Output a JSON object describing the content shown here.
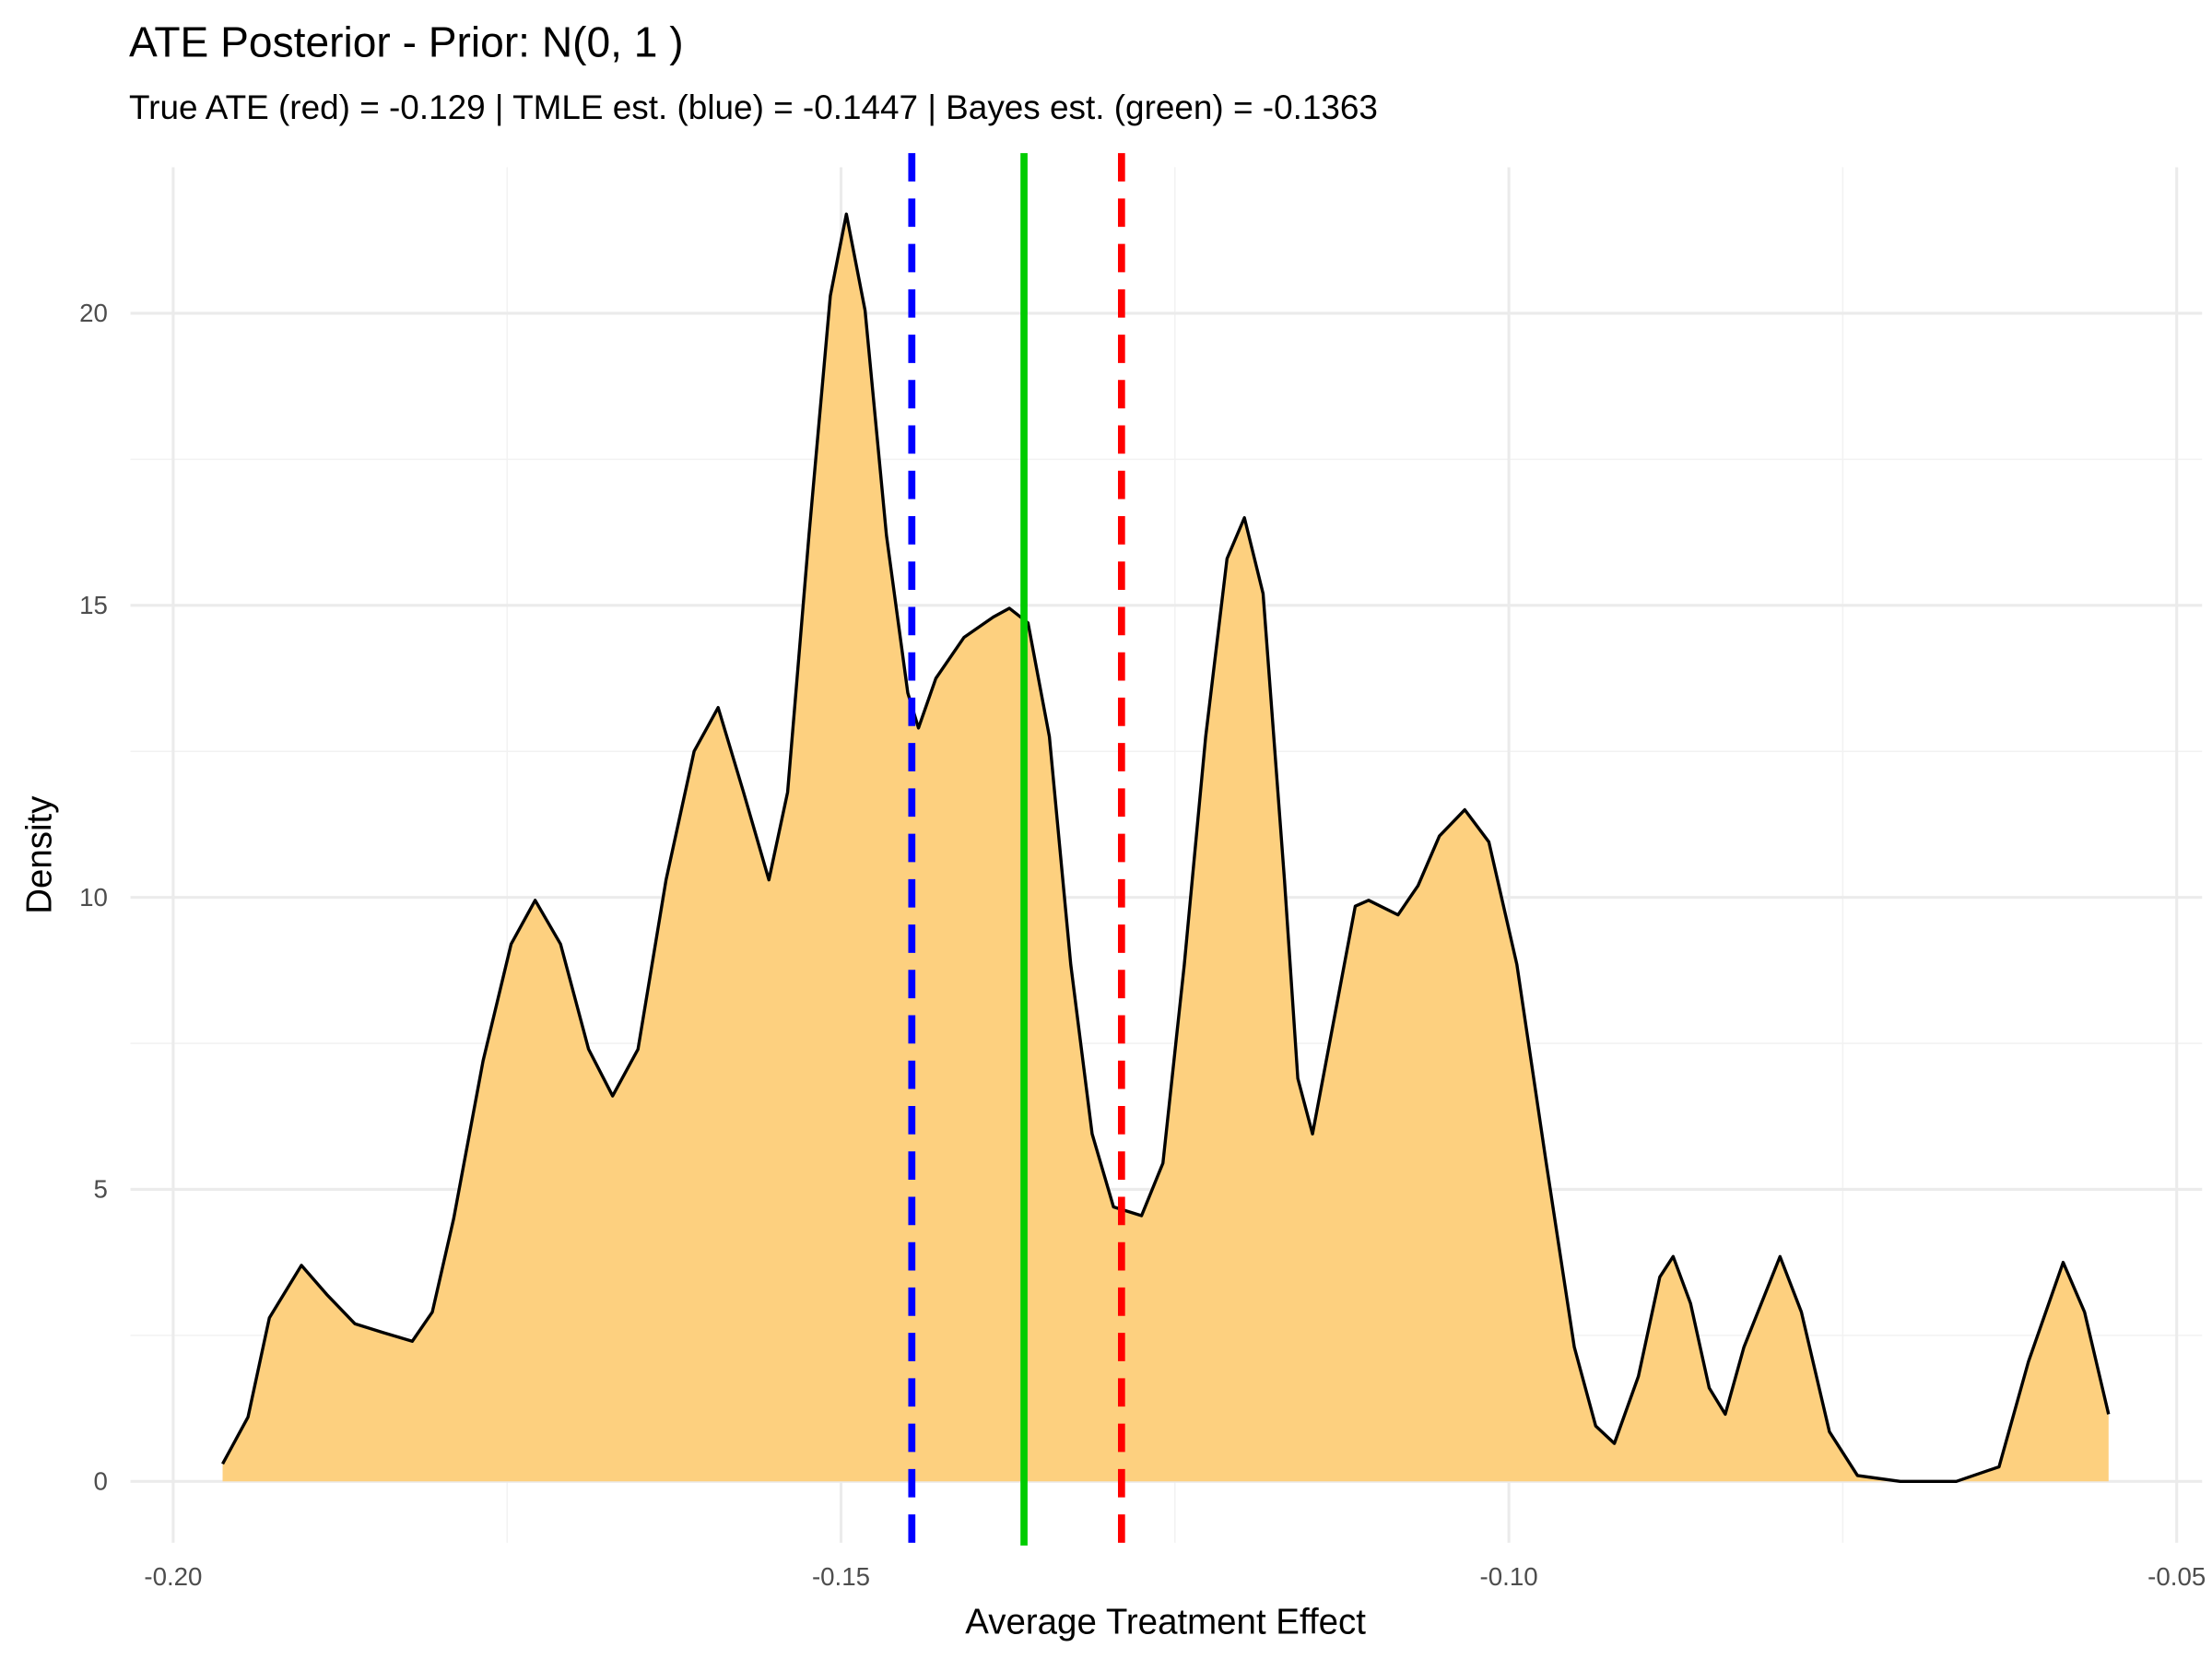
{
  "chart_data": {
    "type": "density",
    "title": "ATE Posterior - Prior: N(0, 1 )",
    "subtitle": "True ATE (red) = -0.129 | TMLE est. (blue) = -0.1447 | Bayes est. (green) = -0.1363",
    "x_label": "Average Treatment Effect",
    "y_label": "Density",
    "x": [
      -0.1963,
      -0.1944,
      -0.1928,
      -0.1904,
      -0.1885,
      -0.1864,
      -0.1843,
      -0.1821,
      -0.1806,
      -0.179,
      -0.1768,
      -0.1747,
      -0.1729,
      -0.171,
      -0.1689,
      -0.1671,
      -0.1652,
      -0.1631,
      -0.161,
      -0.1592,
      -0.1573,
      -0.1554,
      -0.154,
      -0.1524,
      -0.1508,
      -0.1496,
      -0.1482,
      -0.1466,
      -0.145,
      -0.1442,
      -0.1429,
      -0.1408,
      -0.1386,
      -0.1374,
      -0.136,
      -0.1344,
      -0.1328,
      -0.1312,
      -0.1296,
      -0.1275,
      -0.1259,
      -0.1243,
      -0.1227,
      -0.1211,
      -0.1198,
      -0.1184,
      -0.1168,
      -0.1158,
      -0.1147,
      -0.1131,
      -0.1115,
      -0.1105,
      -0.1083,
      -0.1068,
      -0.1052,
      -0.1033,
      -0.1015,
      -0.0994,
      -0.0972,
      -0.0951,
      -0.0935,
      -0.0921,
      -0.0903,
      -0.0887,
      -0.0877,
      -0.0864,
      -0.085,
      -0.0838,
      -0.0824,
      -0.0797,
      -0.0781,
      -0.076,
      -0.0739,
      -0.0707,
      -0.0665,
      -0.0633,
      -0.0611,
      -0.0585,
      -0.0569,
      -0.0551
    ],
    "values": [
      0.3,
      1.1,
      2.8,
      3.7,
      3.2,
      2.7,
      2.55,
      2.4,
      2.9,
      4.5,
      7.2,
      9.2,
      9.95,
      9.2,
      7.4,
      6.6,
      7.4,
      10.3,
      12.5,
      13.25,
      11.8,
      10.3,
      11.8,
      16.2,
      20.3,
      21.7,
      20.05,
      16.2,
      13.5,
      12.9,
      13.75,
      14.45,
      14.8,
      14.95,
      14.7,
      12.75,
      8.85,
      5.95,
      4.7,
      4.55,
      5.45,
      8.85,
      12.75,
      15.8,
      16.5,
      15.2,
      10.3,
      6.9,
      5.95,
      7.9,
      9.85,
      9.95,
      9.7,
      10.2,
      11.05,
      11.5,
      10.95,
      8.85,
      5.45,
      2.3,
      0.95,
      0.65,
      1.8,
      3.5,
      3.85,
      3.05,
      1.6,
      1.15,
      2.3,
      3.85,
      2.9,
      0.85,
      0.1,
      0,
      0,
      0.25,
      2.05,
      3.75,
      2.9,
      1.15
    ],
    "fill": "#fdd07f",
    "line_color": "#000000",
    "vlines": [
      {
        "value": -0.129,
        "color": "#ff0000",
        "linestyle": "dashed"
      },
      {
        "value": -0.1447,
        "color": "#0000ff",
        "linestyle": "dashed"
      },
      {
        "value": -0.1363,
        "color": "#00cc00",
        "linestyle": "solid"
      }
    ],
    "xlim": [
      -0.2032,
      -0.0481
    ],
    "ylim": [
      -1.05,
      22.5
    ],
    "xticks": [
      {
        "value": -0.2,
        "label": "-0.20"
      },
      {
        "value": -0.15,
        "label": "-0.15"
      },
      {
        "value": -0.1,
        "label": "-0.10"
      },
      {
        "value": -0.05,
        "label": "-0.05"
      }
    ],
    "yticks": [
      0,
      5,
      10,
      15,
      20
    ],
    "x_minor_ticks": [
      -0.175,
      -0.125,
      -0.075
    ],
    "y_minor_ticks": [
      2.5,
      7.5,
      12.5,
      17.5
    ],
    "grid": true
  }
}
